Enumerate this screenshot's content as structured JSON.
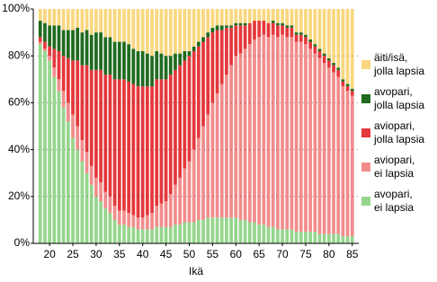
{
  "chart_data": {
    "type": "stacked-bar",
    "x_label": "Ikä",
    "x": [
      18,
      19,
      20,
      21,
      22,
      23,
      24,
      25,
      26,
      27,
      28,
      29,
      30,
      31,
      32,
      33,
      34,
      35,
      36,
      37,
      38,
      39,
      40,
      41,
      42,
      43,
      44,
      45,
      46,
      47,
      48,
      49,
      50,
      51,
      52,
      53,
      54,
      55,
      56,
      57,
      58,
      59,
      60,
      61,
      62,
      63,
      64,
      65,
      66,
      67,
      68,
      69,
      70,
      71,
      72,
      73,
      74,
      75,
      76,
      77,
      78,
      79,
      80,
      81,
      82,
      83,
      84,
      85
    ],
    "xlim": [
      16.5,
      86.4
    ],
    "xticks": [
      20,
      25,
      30,
      35,
      40,
      45,
      50,
      55,
      60,
      65,
      70,
      75,
      80,
      85
    ],
    "ylim": [
      0,
      100
    ],
    "yticks": [
      {
        "value": 0,
        "label": "0%"
      },
      {
        "value": 20,
        "label": "20%"
      },
      {
        "value": 40,
        "label": "40%"
      },
      {
        "value": 60,
        "label": "60%"
      },
      {
        "value": 80,
        "label": "80%"
      },
      {
        "value": 100,
        "label": "100%"
      }
    ],
    "grid": true,
    "legend": "right",
    "series": [
      {
        "name": "avopari,\nei lapsia",
        "color": "#95d68c",
        "values": [
          85,
          82,
          78,
          71,
          65,
          58,
          52,
          45,
          40,
          35,
          30,
          25,
          20,
          18,
          15,
          13,
          10,
          8,
          8,
          7,
          7,
          6,
          6,
          6,
          6,
          7,
          7,
          7,
          7,
          8,
          8,
          9,
          9,
          9,
          10,
          10,
          11,
          11,
          11,
          11,
          11,
          11,
          11,
          10,
          10,
          9,
          9,
          8,
          8,
          7,
          7,
          6,
          6,
          6,
          6,
          5,
          5,
          5,
          5,
          5,
          4,
          4,
          4,
          4,
          4,
          3,
          3,
          3
        ]
      },
      {
        "name": "aviopari,\nei lapsia",
        "color": "#f28c8c",
        "values": [
          1,
          1,
          2,
          4,
          5,
          7,
          8,
          10,
          10,
          9,
          9,
          8,
          8,
          8,
          7,
          7,
          6,
          6,
          6,
          6,
          5,
          5,
          5,
          6,
          7,
          9,
          10,
          11,
          14,
          17,
          20,
          23,
          26,
          31,
          35,
          40,
          44,
          49,
          53,
          57,
          61,
          65,
          69,
          71,
          73,
          76,
          78,
          80,
          81,
          81,
          82,
          82,
          83,
          82,
          82,
          81,
          81,
          80,
          78,
          76,
          75,
          73,
          71,
          69,
          67,
          64,
          62,
          60
        ]
      },
      {
        "name": "aviopari,\njolla lapsia",
        "color": "#e5383b",
        "values": [
          2,
          3,
          4,
          8,
          12,
          15,
          19,
          23,
          28,
          32,
          37,
          41,
          46,
          48,
          50,
          52,
          54,
          56,
          56,
          56,
          56,
          56,
          56,
          55,
          54,
          54,
          53,
          52,
          51,
          49,
          48,
          46,
          45,
          42,
          39,
          36,
          33,
          30,
          27,
          23,
          20,
          16,
          13,
          12,
          10,
          9,
          8,
          7,
          6,
          6,
          5,
          5,
          4,
          4,
          4,
          3,
          3,
          3,
          3,
          3,
          3,
          3,
          3,
          3,
          3,
          2,
          2,
          2
        ]
      },
      {
        "name": "avopari,\njolla lapsia",
        "color": "#1f6b1f",
        "values": [
          7,
          8,
          9,
          10,
          11,
          11,
          12,
          13,
          14,
          14,
          15,
          15,
          16,
          16,
          16,
          16,
          16,
          16,
          16,
          16,
          15,
          15,
          15,
          14,
          13,
          12,
          11,
          10,
          8,
          7,
          5,
          4,
          2,
          2,
          2,
          2,
          2,
          2,
          2,
          2,
          1,
          1,
          1,
          1,
          1,
          0,
          0,
          0,
          0,
          0,
          1,
          1,
          1,
          1,
          1,
          1,
          1,
          1,
          1,
          1,
          1,
          1,
          1,
          1,
          1,
          1,
          1,
          1
        ]
      },
      {
        "name": "äiti/isä,\njolla lapsia",
        "color": "#f9d77e",
        "values": [
          5,
          6,
          7,
          7,
          7,
          9,
          9,
          9,
          8,
          10,
          9,
          11,
          10,
          10,
          12,
          12,
          14,
          14,
          14,
          15,
          17,
          18,
          18,
          19,
          20,
          18,
          19,
          20,
          20,
          19,
          19,
          18,
          18,
          16,
          14,
          12,
          10,
          8,
          7,
          7,
          7,
          7,
          6,
          6,
          6,
          6,
          5,
          5,
          5,
          6,
          5,
          6,
          6,
          7,
          7,
          10,
          10,
          11,
          13,
          15,
          17,
          19,
          21,
          23,
          25,
          30,
          32,
          34
        ]
      }
    ]
  }
}
